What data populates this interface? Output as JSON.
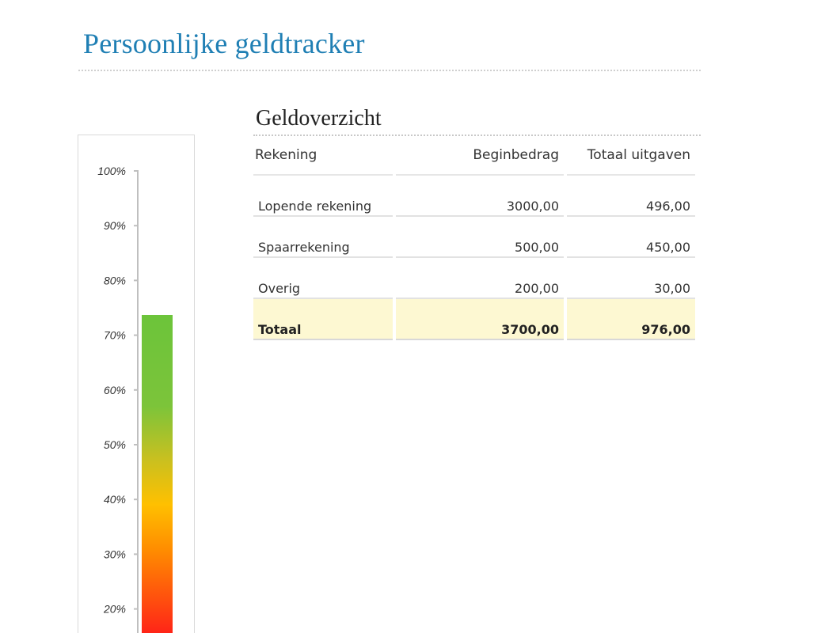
{
  "page": {
    "title": "Persoonlijke geldtracker"
  },
  "gauge": {
    "tick_labels": [
      "100%",
      "90%",
      "80%",
      "70%",
      "60%",
      "50%",
      "40%",
      "30%",
      "20%"
    ],
    "fill_percent": 73.7,
    "gradient_colors": [
      "#ff1a1a",
      "#ff8c00",
      "#ffc000",
      "#c8c020",
      "#7cc43a",
      "#6cc43a"
    ]
  },
  "overview": {
    "title": "Geldoverzicht",
    "headers": {
      "account": "Rekening",
      "begin": "Beginbedrag",
      "spent": "Totaal uitgaven"
    },
    "rows": [
      {
        "account": "Lopende rekening",
        "begin": "3000,00",
        "spent": "496,00"
      },
      {
        "account": "Spaarrekening",
        "begin": "500,00",
        "spent": "450,00"
      },
      {
        "account": "Overig",
        "begin": "200,00",
        "spent": "30,00"
      }
    ],
    "total": {
      "account": "Totaal",
      "begin": "3700,00",
      "spent": "976,00"
    },
    "total_highlight_color": "#fdf8d2"
  }
}
